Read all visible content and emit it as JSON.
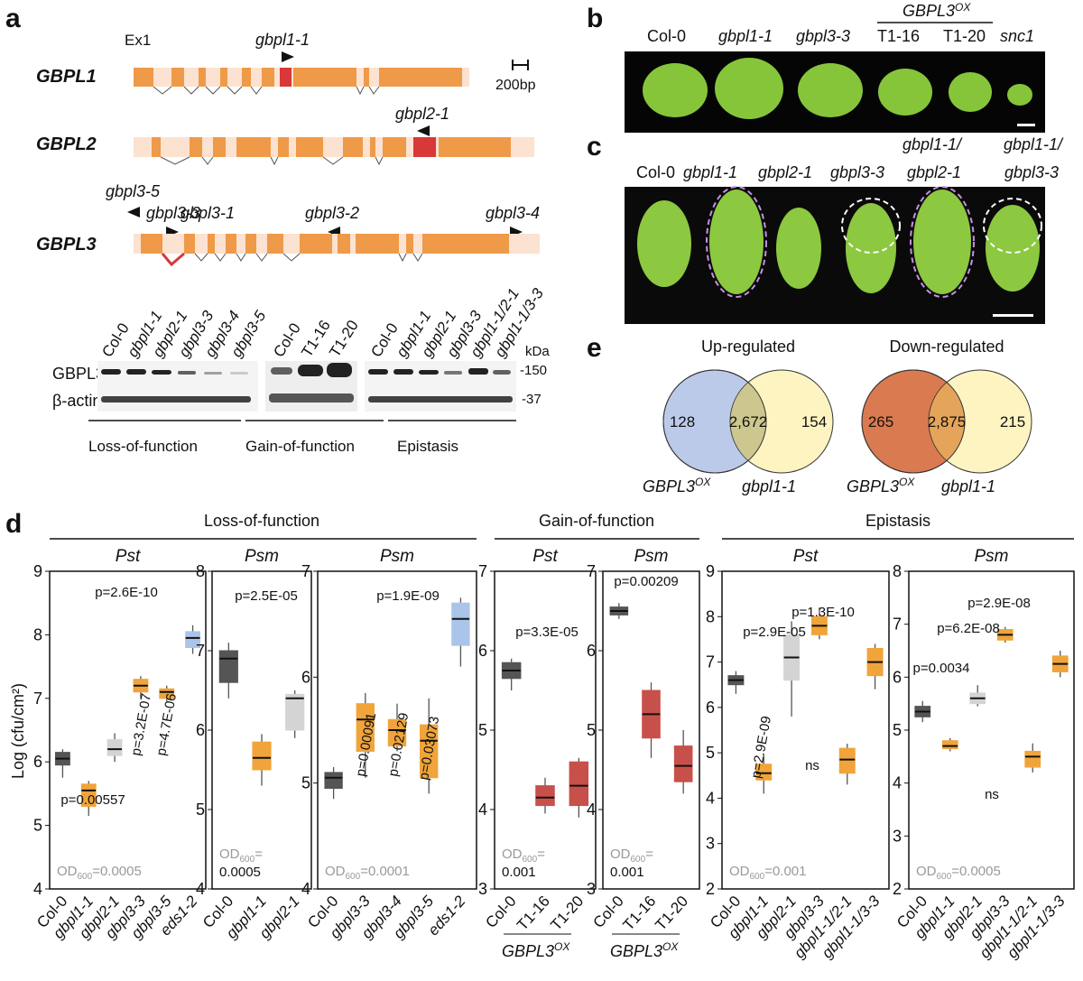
{
  "panel_labels": [
    "a",
    "b",
    "c",
    "d",
    "e"
  ],
  "gene_models": {
    "exon_label": "Ex1",
    "scale": "200bp",
    "genes": [
      {
        "name": "GBPL1",
        "alleles": [
          "gbpl1-1"
        ]
      },
      {
        "name": "GBPL2",
        "alleles": [
          "gbpl2-1"
        ]
      },
      {
        "name": "GBPL3",
        "alleles": [
          "gbpl3-5",
          "gbpl3-3",
          "gbpl3-1",
          "gbpl3-2",
          "gbpl3-4"
        ]
      }
    ]
  },
  "western": {
    "lanes": [
      [
        "Col-0",
        "gbpl1-1",
        "gbpl2-1",
        "gbpl3-3",
        "gbpl3-4",
        "gbpl3-5"
      ],
      [
        "Col-0",
        "T1-16",
        "T1-20"
      ],
      [
        "Col-0",
        "gbpl1-1",
        "gbpl2-1",
        "gbpl3-3",
        "gbpl1-1/2-1",
        "gbpl1-1/3-3"
      ]
    ],
    "rows": [
      "GBPL3",
      "β-actin"
    ],
    "unit": "kDa",
    "markers": [
      "-150",
      "-37"
    ],
    "groups": [
      "Loss-of-function",
      "Gain-of-function",
      "Epistasis"
    ]
  },
  "panel_b": {
    "labels": [
      "Col-0",
      "gbpl1-1",
      "gbpl3-3",
      "T1-16",
      "T1-20",
      "snc1"
    ],
    "ox_name": "GBPL3",
    "ox_sup": "OX"
  },
  "panel_c": {
    "top": [
      "gbpl1-1/",
      "gbpl1-1/"
    ],
    "labels": [
      "Col-0",
      "gbpl1-1",
      "gbpl2-1",
      "gbpl3-3",
      "gbpl2-1",
      "gbpl3-3"
    ]
  },
  "panel_e": [
    {
      "title": "Up-regulated",
      "counts": [
        "128",
        "2,672",
        "154"
      ],
      "set_a": "GBPL3",
      "set_a_sup": "OX",
      "set_b": "gbpl1-1"
    },
    {
      "title": "Down-regulated",
      "counts": [
        "265",
        "2,875",
        "215"
      ],
      "set_a": "GBPL3",
      "set_a_sup": "OX",
      "set_b": "gbpl1-1"
    }
  ],
  "panel_d": {
    "y_label": "Log (cfu/cm²)",
    "groups": [
      "Loss-of-function",
      "Gain-of-function",
      "Epistasis"
    ]
  },
  "chart_data": [
    {
      "type": "box",
      "title": "Pst",
      "ylim": [
        4,
        9
      ],
      "yticks": [
        4,
        5,
        6,
        7,
        8,
        9
      ],
      "categories": [
        "Col-0",
        "gbpl1-1",
        "gbpl2-1",
        "gbpl3-3",
        "gbpl3-5",
        "eds1-2"
      ],
      "colors": [
        "#555555",
        "#f0a43a",
        "#d4d4d4",
        "#f0a43a",
        "#f0a43a",
        "#aac4ea"
      ],
      "min": [
        5.75,
        5.15,
        6.0,
        7.0,
        6.95,
        7.7
      ],
      "q1": [
        5.95,
        5.3,
        6.1,
        7.1,
        7.0,
        7.8
      ],
      "median": [
        6.05,
        5.55,
        6.2,
        7.2,
        7.1,
        7.95
      ],
      "q3": [
        6.15,
        5.65,
        6.35,
        7.3,
        7.15,
        8.05
      ],
      "max": [
        6.2,
        5.7,
        6.45,
        7.35,
        7.2,
        8.15
      ],
      "annotations": [
        "p=2.6E-10",
        "p=0.00557",
        "p=3.2E-07",
        "p=4.7E-06"
      ],
      "od_label": "OD",
      "od_sub": "600",
      "od_value": "=0.0005"
    },
    {
      "type": "box",
      "title": "Psm",
      "ylim": [
        4,
        8
      ],
      "yticks": [
        4,
        5,
        6,
        7,
        8
      ],
      "categories": [
        "Col-0",
        "gbpl1-1",
        "gbpl2-1"
      ],
      "colors": [
        "#555555",
        "#f0a43a",
        "#d4d4d4"
      ],
      "min": [
        6.4,
        5.3,
        5.9
      ],
      "q1": [
        6.6,
        5.5,
        6.0
      ],
      "median": [
        6.9,
        5.65,
        6.4
      ],
      "q3": [
        7.0,
        5.85,
        6.45
      ],
      "max": [
        7.1,
        5.95,
        6.5
      ],
      "annotations": [
        "p=2.5E-05"
      ],
      "od_label": "OD",
      "od_sub": "600",
      "od_value": "=",
      "od_value2": "0.0005"
    },
    {
      "type": "box",
      "title": "Psm",
      "ylim": [
        4,
        7
      ],
      "yticks": [
        4,
        5,
        6,
        7
      ],
      "categories": [
        "Col-0",
        "gbpl3-3",
        "gbpl3-4",
        "gbpl3-5",
        "eds1-2"
      ],
      "colors": [
        "#555555",
        "#f0a43a",
        "#f0a43a",
        "#f0a43a",
        "#aac4ea"
      ],
      "min": [
        4.85,
        5.05,
        5.3,
        4.9,
        6.1
      ],
      "q1": [
        4.95,
        5.3,
        5.35,
        5.05,
        6.3
      ],
      "median": [
        5.05,
        5.6,
        5.5,
        5.4,
        6.55
      ],
      "q3": [
        5.1,
        5.75,
        5.6,
        5.55,
        6.7
      ],
      "max": [
        5.15,
        5.85,
        5.75,
        5.8,
        6.75
      ],
      "annotations": [
        "p=1.9E-09",
        "p=0.00091",
        "p=0.02129",
        "p=0.03073"
      ],
      "od_label": "OD",
      "od_sub": "600",
      "od_value": "=0.0001"
    },
    {
      "type": "box",
      "title": "Pst",
      "ylim": [
        3,
        7
      ],
      "yticks": [
        3,
        4,
        5,
        6,
        7
      ],
      "categories": [
        "Col-0",
        "T1-16",
        "T1-20"
      ],
      "colors": [
        "#555555",
        "#c8504a",
        "#c8504a"
      ],
      "min": [
        5.5,
        3.95,
        3.9
      ],
      "q1": [
        5.65,
        4.05,
        4.05
      ],
      "median": [
        5.75,
        4.15,
        4.3
      ],
      "q3": [
        5.85,
        4.3,
        4.6
      ],
      "max": [
        5.9,
        4.4,
        4.65
      ],
      "annotations": [
        "p=3.3E-05"
      ],
      "od_label": "OD",
      "od_sub": "600",
      "od_value": "=",
      "od_value2": "0.001",
      "footer": "GBPL3",
      "footer_sup": "OX"
    },
    {
      "type": "box",
      "title": "Psm",
      "ylim": [
        3,
        7
      ],
      "yticks": [
        3,
        4,
        5,
        6,
        7
      ],
      "categories": [
        "Col-0",
        "T1-16",
        "T1-20"
      ],
      "colors": [
        "#555555",
        "#c8504a",
        "#c8504a"
      ],
      "min": [
        6.4,
        4.65,
        4.2
      ],
      "q1": [
        6.45,
        4.9,
        4.35
      ],
      "median": [
        6.5,
        5.2,
        4.55
      ],
      "q3": [
        6.55,
        5.5,
        4.8
      ],
      "max": [
        6.6,
        5.6,
        5.0
      ],
      "annotations": [
        "p=0.00209"
      ],
      "od_label": "OD",
      "od_sub": "600",
      "od_value": "=",
      "od_value2": "0.001",
      "footer": "GBPL3",
      "footer_sup": "OX"
    },
    {
      "type": "box",
      "title": "Pst",
      "ylim": [
        2,
        9
      ],
      "yticks": [
        2,
        3,
        4,
        5,
        6,
        7,
        8,
        9
      ],
      "categories": [
        "Col-0",
        "gbpl1-1",
        "gbpl2-1",
        "gbpl3-3",
        "gbpl1-1/2-1",
        "gbpl1-1/3-3"
      ],
      "colors": [
        "#555555",
        "#f0a43a",
        "#d4d4d4",
        "#f0a43a",
        "#f0a43a",
        "#f0a43a"
      ],
      "min": [
        6.3,
        4.1,
        5.8,
        7.5,
        4.3,
        6.4
      ],
      "q1": [
        6.5,
        4.4,
        6.6,
        7.6,
        4.55,
        6.7
      ],
      "median": [
        6.6,
        4.55,
        7.1,
        7.8,
        4.85,
        7.0
      ],
      "q3": [
        6.7,
        4.75,
        7.6,
        8.0,
        5.1,
        7.3
      ],
      "max": [
        6.8,
        4.95,
        7.9,
        8.2,
        5.2,
        7.4
      ],
      "annotations": [
        "p=1.3E-10",
        "p=2.9E-05",
        "p=2.9E-09",
        "ns"
      ],
      "od_label": "OD",
      "od_sub": "600",
      "od_value": "=0.001"
    },
    {
      "type": "box",
      "title": "Psm",
      "ylim": [
        2,
        8
      ],
      "yticks": [
        2,
        3,
        4,
        5,
        6,
        7,
        8
      ],
      "categories": [
        "Col-0",
        "gbpl1-1",
        "gbpl2-1",
        "gbpl3-3",
        "gbpl1-1/2-1",
        "gbpl1-1/3-3"
      ],
      "colors": [
        "#555555",
        "#f0a43a",
        "#d4d4d4",
        "#f0a43a",
        "#f0a43a",
        "#f0a43a"
      ],
      "min": [
        5.15,
        4.6,
        5.45,
        6.65,
        4.2,
        6.0
      ],
      "q1": [
        5.25,
        4.65,
        5.5,
        6.7,
        4.3,
        6.1
      ],
      "median": [
        5.35,
        4.7,
        5.6,
        6.8,
        4.5,
        6.25
      ],
      "q3": [
        5.45,
        4.8,
        5.7,
        6.9,
        4.6,
        6.4
      ],
      "max": [
        5.55,
        4.85,
        5.85,
        6.95,
        4.75,
        6.5
      ],
      "annotations": [
        "p=2.9E-08",
        "p=6.2E-08",
        "p=0.0034",
        "ns"
      ],
      "od_label": "OD",
      "od_sub": "600",
      "od_value": "=0.0005"
    }
  ]
}
